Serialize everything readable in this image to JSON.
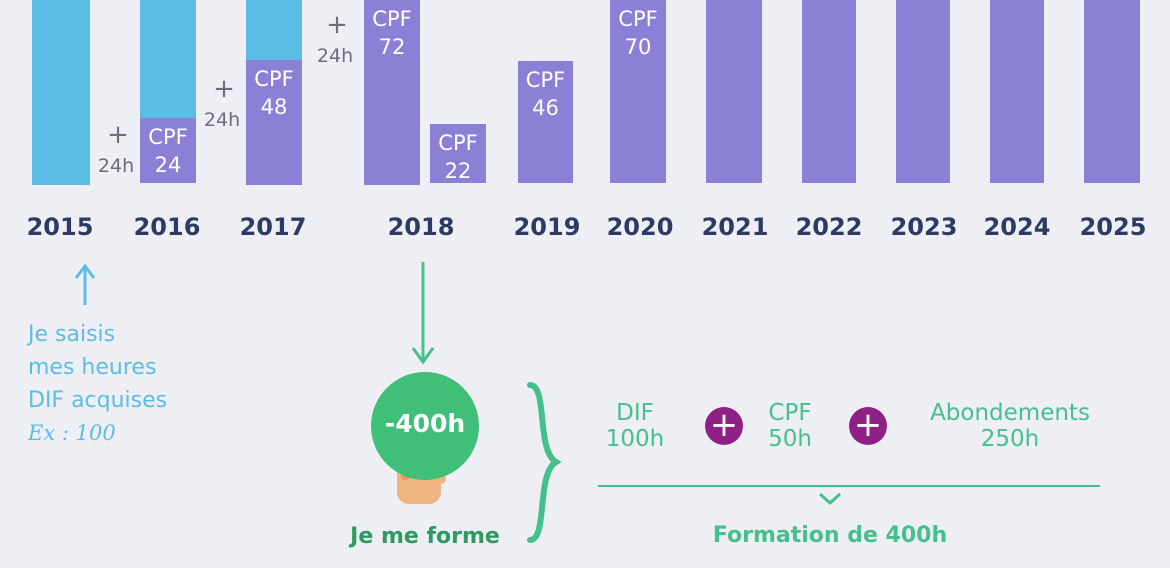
{
  "colors": {
    "dif": "#5bbde3",
    "cpf": "#8a80d6",
    "accent_green": "#3fbf78",
    "plus_purple": "#8e2183",
    "year_text": "#2d3b63"
  },
  "chart_data": {
    "type": "bar",
    "categories": [
      "2015",
      "2016",
      "2017",
      "2018",
      "2019",
      "2020",
      "2021",
      "2022",
      "2023",
      "2024",
      "2025"
    ],
    "bars": [
      {
        "year": "2015",
        "segments": [
          {
            "kind": "DIF",
            "label": ""
          }
        ],
        "increment": ""
      },
      {
        "year": "2016",
        "segments": [
          {
            "kind": "DIF",
            "label": ""
          },
          {
            "kind": "CPF",
            "label": "CPF",
            "value": "24"
          }
        ],
        "increment": "24h"
      },
      {
        "year": "2017",
        "segments": [
          {
            "kind": "DIF",
            "label": ""
          },
          {
            "kind": "CPF",
            "label": "CPF",
            "value": "48"
          }
        ],
        "increment": "24h"
      },
      {
        "year": "2018",
        "segments": [
          {
            "kind": "CPF",
            "label": "CPF",
            "value": "72"
          }
        ],
        "increment": "24h"
      },
      {
        "year": "2018",
        "segments": [
          {
            "kind": "CPF",
            "label": "CPF",
            "value": "22"
          }
        ],
        "increment": ""
      },
      {
        "year": "2019",
        "segments": [
          {
            "kind": "CPF",
            "label": "CPF",
            "value": "46"
          }
        ],
        "increment": ""
      },
      {
        "year": "2020",
        "segments": [
          {
            "kind": "CPF",
            "label": "CPF",
            "value": "70"
          }
        ],
        "increment": ""
      },
      {
        "year": "2021",
        "segments": [
          {
            "kind": "CPF",
            "label": ""
          }
        ],
        "increment": ""
      },
      {
        "year": "2022",
        "segments": [
          {
            "kind": "CPF",
            "label": ""
          }
        ],
        "increment": ""
      },
      {
        "year": "2023",
        "segments": [
          {
            "kind": "CPF",
            "label": ""
          }
        ],
        "increment": ""
      },
      {
        "year": "2024",
        "segments": [
          {
            "kind": "CPF",
            "label": ""
          }
        ],
        "increment": ""
      },
      {
        "year": "2025",
        "segments": [
          {
            "kind": "CPF",
            "label": ""
          }
        ],
        "increment": ""
      }
    ],
    "plus_sign": "+"
  },
  "annotations": {
    "dif_note": {
      "line1": "Je saisis",
      "line2": "mes heures",
      "line3": "DIF acquises",
      "example": "Ex : 100"
    },
    "training": {
      "deduction": "-400h",
      "caption": "Je me forme"
    },
    "breakdown": {
      "dif_label": "DIF",
      "dif_hours": "100h",
      "cpf_label": "CPF",
      "cpf_hours": "50h",
      "abond_label": "Abondements",
      "abond_hours": "250h",
      "plus": "+",
      "total": "Formation de  400h"
    }
  }
}
